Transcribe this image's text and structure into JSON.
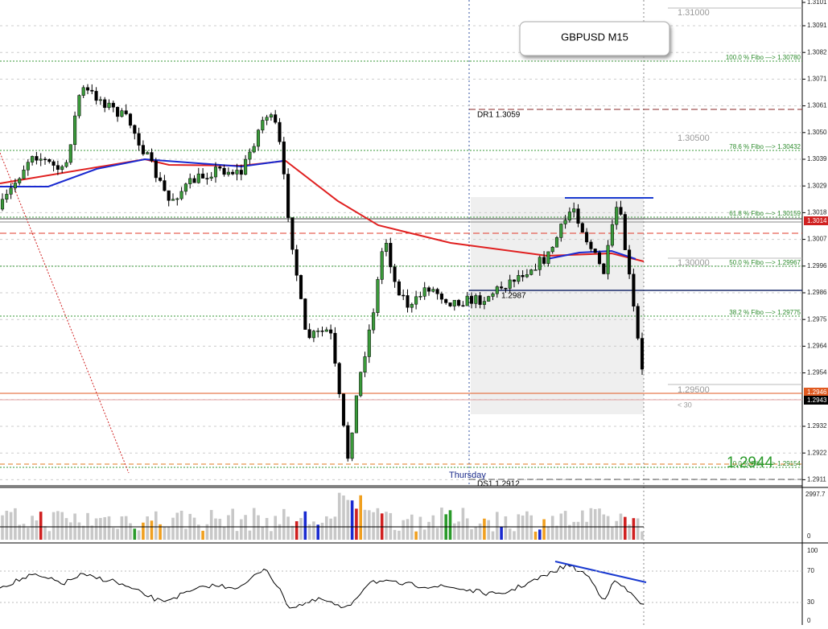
{
  "chart_window": {
    "title": "GBPUSD M15",
    "price_axis": [
      "1.3101",
      "1.3091",
      "1.3082",
      "1.3071",
      "1.3061",
      "1.3050",
      "1.3039",
      "1.3029",
      "1.3018",
      "1.3007",
      "1.2996",
      "1.2986",
      "1.2975",
      "1.2964",
      "1.2954",
      "1.2932",
      "1.2922",
      "1.2911"
    ],
    "price_markers": {
      "resistance": "1.3014",
      "orange": "1.2946",
      "current": "1.2943"
    },
    "fibo_levels": [
      "100.0  % Fibo  —> 1.30780",
      "78.6  % Fibo  —> 1.30432",
      "61.8  % Fibo  —> 1.30159",
      "50.0  % Fibo  —> 1.29967",
      "38.2  % Fibo  —> 1.29775",
      "0.0  % Fibo  —> 1.29154"
    ],
    "round_levels": [
      "1.31000",
      "1.30500",
      "1.30000",
      "1.29500"
    ],
    "rsi_note": "< 30",
    "pivots": {
      "dr1": "DR1    1.3059",
      "pivot": "1.2987",
      "ds1": "DS1    1.2912"
    },
    "day_label": "Thursday",
    "big_price": "1.2944",
    "volume_axis": [
      "2997.7",
      "0"
    ],
    "rsi_axis": [
      "100",
      "70",
      "30",
      "0"
    ]
  }
}
